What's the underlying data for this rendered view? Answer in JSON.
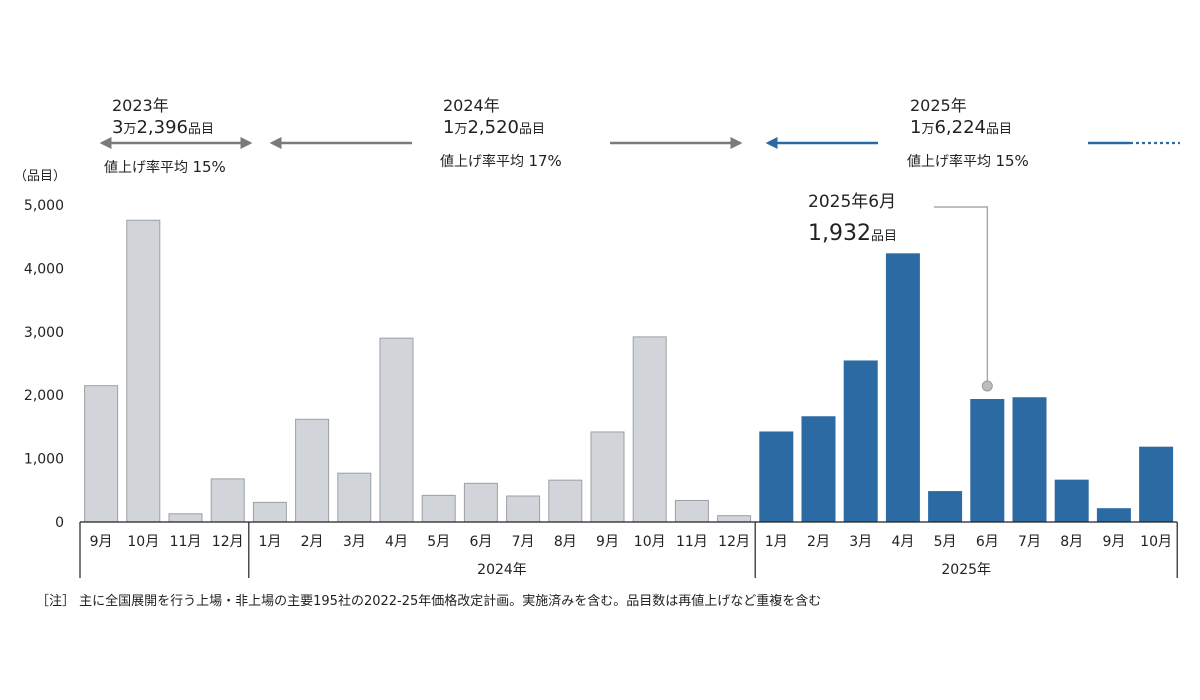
{
  "chart_data": {
    "type": "bar",
    "y_unit_label": "（品目）",
    "ylim": [
      0,
      5000
    ],
    "y_ticks": [
      "0",
      "1,000",
      "2,000",
      "3,000",
      "4,000",
      "5,000"
    ],
    "y_tick_values": [
      0,
      1000,
      2000,
      3000,
      4000,
      5000
    ],
    "categories": [
      "9月",
      "10月",
      "11月",
      "12月",
      "1月",
      "2月",
      "3月",
      "4月",
      "5月",
      "6月",
      "7月",
      "8月",
      "9月",
      "10月",
      "11月",
      "12月",
      "1月",
      "2月",
      "3月",
      "4月",
      "5月",
      "6月",
      "7月",
      "8月",
      "9月",
      "10月"
    ],
    "values": [
      2150,
      4760,
      130,
      680,
      310,
      1620,
      770,
      2900,
      420,
      610,
      410,
      660,
      1420,
      2920,
      340,
      100,
      1420,
      1660,
      2540,
      4230,
      480,
      1932,
      1960,
      660,
      210,
      1180
    ],
    "year_index": [
      0,
      0,
      0,
      0,
      1,
      1,
      1,
      1,
      1,
      1,
      1,
      1,
      1,
      1,
      1,
      1,
      2,
      2,
      2,
      2,
      2,
      2,
      2,
      2,
      2,
      2
    ],
    "year_groups": [
      {
        "label": "",
        "start": 0,
        "end": 3
      },
      {
        "label": "2024年",
        "start": 4,
        "end": 15
      },
      {
        "label": "2025年",
        "start": 16,
        "end": 25
      }
    ],
    "colors": {
      "past": "#d1d5d9",
      "past_stroke": "#9aa0a6",
      "current": "#2c6aa3",
      "arrow_gray": "#7a7a7a",
      "leader": "#999999"
    },
    "annual_summary": [
      {
        "year": "2023年",
        "count_pre": "3",
        "count_unit": "万",
        "count_post": "2,396",
        "count_suffix": "品目",
        "rate_label": "値上げ率平均",
        "rate": "15%"
      },
      {
        "year": "2024年",
        "count_pre": "1",
        "count_unit": "万",
        "count_post": "2,520",
        "count_suffix": "品目",
        "rate_label": "値上げ率平均",
        "rate": "17%"
      },
      {
        "year": "2025年",
        "count_pre": "1",
        "count_unit": "万",
        "count_post": "6,224",
        "count_suffix": "品目",
        "rate_label": "値上げ率平均",
        "rate": "15%"
      }
    ],
    "annotation": {
      "target_index": 21,
      "title": "2025年6月",
      "value": "1,932",
      "suffix": "品目"
    },
    "note": "［注］ 主に全国展開を行う上場・非上場の主要195社の2022-25年価格改定計画。実施済みを含む。品目数は再値上げなど重複を含む"
  }
}
